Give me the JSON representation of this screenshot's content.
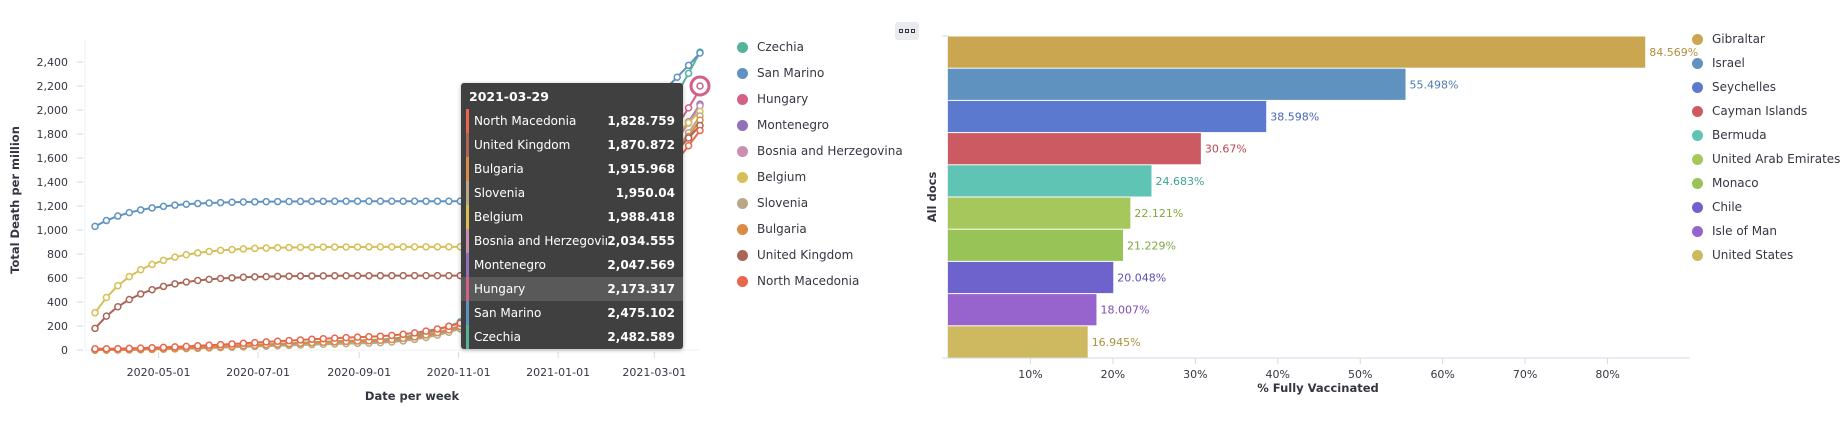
{
  "chart_data": [
    {
      "type": "line",
      "title": "",
      "xlabel": "Date per week",
      "ylabel": "Total Death per million",
      "ylim": [
        0,
        2500
      ],
      "y_ticks": [
        0,
        200,
        400,
        600,
        800,
        1000,
        1200,
        1400,
        1600,
        1800,
        2000,
        2200,
        2400
      ],
      "y_tick_labels": [
        "0",
        "200",
        "400",
        "600",
        "800",
        "1,000",
        "1,200",
        "1,400",
        "1,600",
        "1,800",
        "2,000",
        "2,200",
        "2,400"
      ],
      "x_range": [
        "2020-03-23",
        "2021-03-29"
      ],
      "x_ticks": [
        "2020-05-01",
        "2020-07-01",
        "2020-09-01",
        "2020-11-01",
        "2021-01-01",
        "2021-03-01"
      ],
      "grid": false,
      "legend_position": "right",
      "series": [
        {
          "name": "Czechia",
          "color": "#54b399",
          "start": 0,
          "bump": [
            0.18,
            0.36
          ],
          "end": 2482.589
        },
        {
          "name": "San Marino",
          "color": "#6092c0",
          "start": 1030,
          "plateau": 1240,
          "end": 2475.102
        },
        {
          "name": "Hungary",
          "color": "#d36086",
          "start": 5,
          "bump": [
            0.14,
            0.4
          ],
          "end": 2173.317
        },
        {
          "name": "Montenegro",
          "color": "#9170b8",
          "start": 0,
          "bump": [
            0.2,
            0.35
          ],
          "end": 2047.569
        },
        {
          "name": "Bosnia and Herzegovina",
          "color": "#ca8eae",
          "start": 0,
          "bump": [
            0.2,
            0.5
          ],
          "end": 2034.555
        },
        {
          "name": "Belgium",
          "color": "#d6bf57",
          "start": 310,
          "plateau": 860,
          "end": 1988.418
        },
        {
          "name": "Slovenia",
          "color": "#b9a888",
          "start": 0,
          "bump": [
            0.16,
            0.42
          ],
          "end": 1950.04
        },
        {
          "name": "Bulgaria",
          "color": "#da8b45",
          "start": 0,
          "bump": [
            0.22,
            0.32
          ],
          "end": 1915.968
        },
        {
          "name": "United Kingdom",
          "color": "#aa6556",
          "start": 180,
          "plateau": 620,
          "end": 1870.872
        },
        {
          "name": "North Macedonia",
          "color": "#e7664c",
          "start": 10,
          "bump": [
            0.3,
            0.5
          ],
          "end": 1828.759
        }
      ],
      "tooltip": {
        "date": "2021-03-29",
        "rows": [
          {
            "name": "North Macedonia",
            "value": "1,828.759",
            "color": "#e7664c"
          },
          {
            "name": "United Kingdom",
            "value": "1,870.872",
            "color": "#aa6556"
          },
          {
            "name": "Bulgaria",
            "value": "1,915.968",
            "color": "#da8b45"
          },
          {
            "name": "Slovenia",
            "value": "1,950.04",
            "color": "#b9a888"
          },
          {
            "name": "Belgium",
            "value": "1,988.418",
            "color": "#d6bf57"
          },
          {
            "name": "Bosnia and Herzegovina",
            "value": "2,034.555",
            "color": "#ca8eae"
          },
          {
            "name": "Montenegro",
            "value": "2,047.569",
            "color": "#9170b8"
          },
          {
            "name": "Hungary",
            "value": "2,173.317",
            "color": "#d36086",
            "highlight": true
          },
          {
            "name": "San Marino",
            "value": "2,475.102",
            "color": "#6092c0"
          },
          {
            "name": "Czechia",
            "value": "2,482.589",
            "color": "#54b399"
          }
        ]
      }
    },
    {
      "type": "bar",
      "orientation": "horizontal",
      "title": "",
      "xlabel": "% Fully Vaccinated",
      "ylabel": "All docs",
      "xlim": [
        0,
        90
      ],
      "x_ticks": [
        10,
        20,
        30,
        40,
        50,
        60,
        70,
        80
      ],
      "x_tick_labels": [
        "10%",
        "20%",
        "30%",
        "40%",
        "50%",
        "60%",
        "70%",
        "80%"
      ],
      "grid": false,
      "legend_position": "right",
      "bars": [
        {
          "name": "Gibraltar",
          "value": 84.569,
          "label": "84.569%",
          "color": "#c9a64f",
          "label_color": "#b08f3e"
        },
        {
          "name": "Israel",
          "value": 55.498,
          "label": "55.498%",
          "color": "#6092c0",
          "label_color": "#4d7bb0"
        },
        {
          "name": "Seychelles",
          "value": 38.598,
          "label": "38.598%",
          "color": "#5b79ce",
          "label_color": "#4a66b8"
        },
        {
          "name": "Cayman Islands",
          "value": 30.67,
          "label": "30.67%",
          "color": "#cc5a63",
          "label_color": "#b8464f"
        },
        {
          "name": "Bermuda",
          "value": 24.683,
          "label": "24.683%",
          "color": "#5fc4b4",
          "label_color": "#3ea393"
        },
        {
          "name": "United Arab Emirates",
          "value": 22.121,
          "label": "22.121%",
          "color": "#a6c75b",
          "label_color": "#86a93b"
        },
        {
          "name": "Monaco",
          "value": 21.229,
          "label": "21.229%",
          "color": "#98c457",
          "label_color": "#7aa83c"
        },
        {
          "name": "Chile",
          "value": 20.048,
          "label": "20.048%",
          "color": "#6e63cc",
          "label_color": "#5a50b8"
        },
        {
          "name": "Isle of Man",
          "value": 18.007,
          "label": "18.007%",
          "color": "#9763cc",
          "label_color": "#7e4db5"
        },
        {
          "name": "United States",
          "value": 16.945,
          "label": "16.945%",
          "color": "#cdb95f",
          "label_color": "#a8943d"
        }
      ]
    }
  ]
}
